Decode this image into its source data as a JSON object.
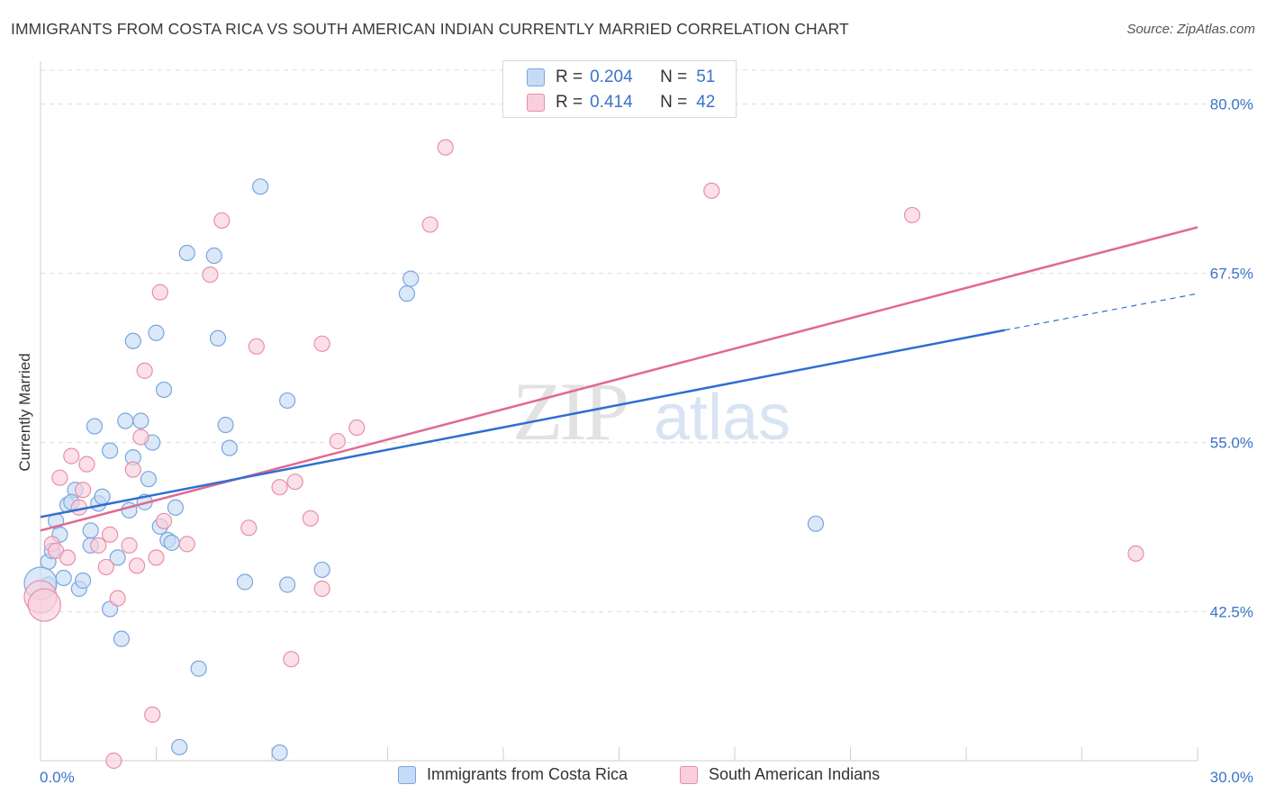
{
  "title": "IMMIGRANTS FROM COSTA RICA VS SOUTH AMERICAN INDIAN CURRENTLY MARRIED CORRELATION CHART",
  "source": "Source: ZipAtlas.com",
  "watermark": {
    "zip": "ZIP",
    "atlas": "atlas"
  },
  "legend": {
    "series1": {
      "r_label": "R =",
      "r_value": "0.204",
      "n_label": "N =",
      "n_value": "51"
    },
    "series2": {
      "r_label": "R =",
      "r_value": "0.414",
      "n_label": "N =",
      "n_value": "42"
    }
  },
  "colors": {
    "blue_fill": "#c6dbf5",
    "blue_stroke": "#7aa6de",
    "blue_line": "#2f6fd0",
    "pink_fill": "#f9cfdc",
    "pink_stroke": "#e88fab",
    "pink_line": "#e06994",
    "axis_label": "#3b73c9",
    "grid": "#dcdcdc"
  },
  "chart_data": {
    "type": "scatter",
    "xlabel": "",
    "ylabel": "Currently Married",
    "xlim": [
      0,
      30
    ],
    "ylim": [
      31.5,
      82.5
    ],
    "x_tick_labels": [
      "0.0%",
      "30.0%"
    ],
    "y_ticks": [
      42.5,
      55.0,
      67.5,
      80.0
    ],
    "y_tick_labels": [
      "42.5%",
      "55.0%",
      "67.5%",
      "80.0%"
    ],
    "grid": "horizontal dashed",
    "legend_position": "top-center",
    "series": [
      {
        "name": "Immigrants from Costa Rica",
        "color": "#7aa6de",
        "points": [
          [
            0.2,
            44.5
          ],
          [
            0.2,
            46.2
          ],
          [
            0.3,
            47.0
          ],
          [
            0.4,
            49.2
          ],
          [
            0.5,
            48.2
          ],
          [
            0.6,
            45.0
          ],
          [
            0.7,
            50.4
          ],
          [
            0.9,
            51.5
          ],
          [
            1.0,
            44.2
          ],
          [
            1.1,
            44.8
          ],
          [
            0.8,
            50.6
          ],
          [
            1.3,
            48.5
          ],
          [
            1.3,
            47.4
          ],
          [
            1.4,
            56.2
          ],
          [
            1.5,
            50.5
          ],
          [
            1.6,
            51.0
          ],
          [
            1.8,
            42.7
          ],
          [
            1.8,
            54.4
          ],
          [
            2.0,
            46.5
          ],
          [
            2.1,
            40.5
          ],
          [
            2.2,
            56.6
          ],
          [
            2.3,
            50.0
          ],
          [
            2.4,
            53.9
          ],
          [
            2.4,
            62.5
          ],
          [
            2.6,
            56.6
          ],
          [
            2.7,
            50.6
          ],
          [
            2.8,
            52.3
          ],
          [
            2.9,
            55.0
          ],
          [
            3.0,
            63.1
          ],
          [
            3.1,
            48.8
          ],
          [
            3.2,
            58.9
          ],
          [
            3.3,
            47.8
          ],
          [
            3.4,
            47.6
          ],
          [
            3.5,
            50.2
          ],
          [
            3.6,
            32.5
          ],
          [
            3.8,
            69.0
          ],
          [
            4.1,
            38.3
          ],
          [
            4.5,
            68.8
          ],
          [
            4.6,
            62.7
          ],
          [
            4.8,
            56.3
          ],
          [
            4.9,
            54.6
          ],
          [
            5.3,
            44.7
          ],
          [
            5.7,
            73.9
          ],
          [
            6.2,
            32.1
          ],
          [
            6.4,
            44.5
          ],
          [
            6.4,
            58.1
          ],
          [
            7.3,
            45.6
          ],
          [
            9.5,
            66.0
          ],
          [
            9.6,
            67.1
          ],
          [
            20.1,
            49.0
          ],
          [
            0.0,
            44.6
          ]
        ]
      },
      {
        "name": "South American Indians",
        "color": "#e88fab",
        "points": [
          [
            0.0,
            43.6
          ],
          [
            0.3,
            47.5
          ],
          [
            0.4,
            47.0
          ],
          [
            0.5,
            52.4
          ],
          [
            0.7,
            46.5
          ],
          [
            0.8,
            54.0
          ],
          [
            1.0,
            50.2
          ],
          [
            1.1,
            51.5
          ],
          [
            1.2,
            53.4
          ],
          [
            1.5,
            47.4
          ],
          [
            1.7,
            45.8
          ],
          [
            1.8,
            48.2
          ],
          [
            1.9,
            31.5
          ],
          [
            2.0,
            43.5
          ],
          [
            2.3,
            47.4
          ],
          [
            2.4,
            53.0
          ],
          [
            2.5,
            45.9
          ],
          [
            2.6,
            55.4
          ],
          [
            2.7,
            60.3
          ],
          [
            2.9,
            34.9
          ],
          [
            3.0,
            46.5
          ],
          [
            3.1,
            66.1
          ],
          [
            3.2,
            49.2
          ],
          [
            3.8,
            47.5
          ],
          [
            4.4,
            67.4
          ],
          [
            4.7,
            71.4
          ],
          [
            5.4,
            48.7
          ],
          [
            5.6,
            62.1
          ],
          [
            6.2,
            51.7
          ],
          [
            6.5,
            39.0
          ],
          [
            6.6,
            52.1
          ],
          [
            7.0,
            49.4
          ],
          [
            7.3,
            62.3
          ],
          [
            7.3,
            44.2
          ],
          [
            7.7,
            55.1
          ],
          [
            8.2,
            56.1
          ],
          [
            10.1,
            71.1
          ],
          [
            10.5,
            76.8
          ],
          [
            17.4,
            73.6
          ],
          [
            22.6,
            71.8
          ],
          [
            28.4,
            46.8
          ],
          [
            0.1,
            43.0
          ]
        ]
      }
    ],
    "trendlines": [
      {
        "series": "Immigrants from Costa Rica",
        "x": [
          0,
          25
        ],
        "y": [
          49.5,
          63.3
        ],
        "dashed_extension": [
          25,
          30,
          66.0
        ]
      },
      {
        "series": "South American Indians",
        "x": [
          0,
          30
        ],
        "y": [
          48.5,
          70.9
        ]
      }
    ]
  }
}
